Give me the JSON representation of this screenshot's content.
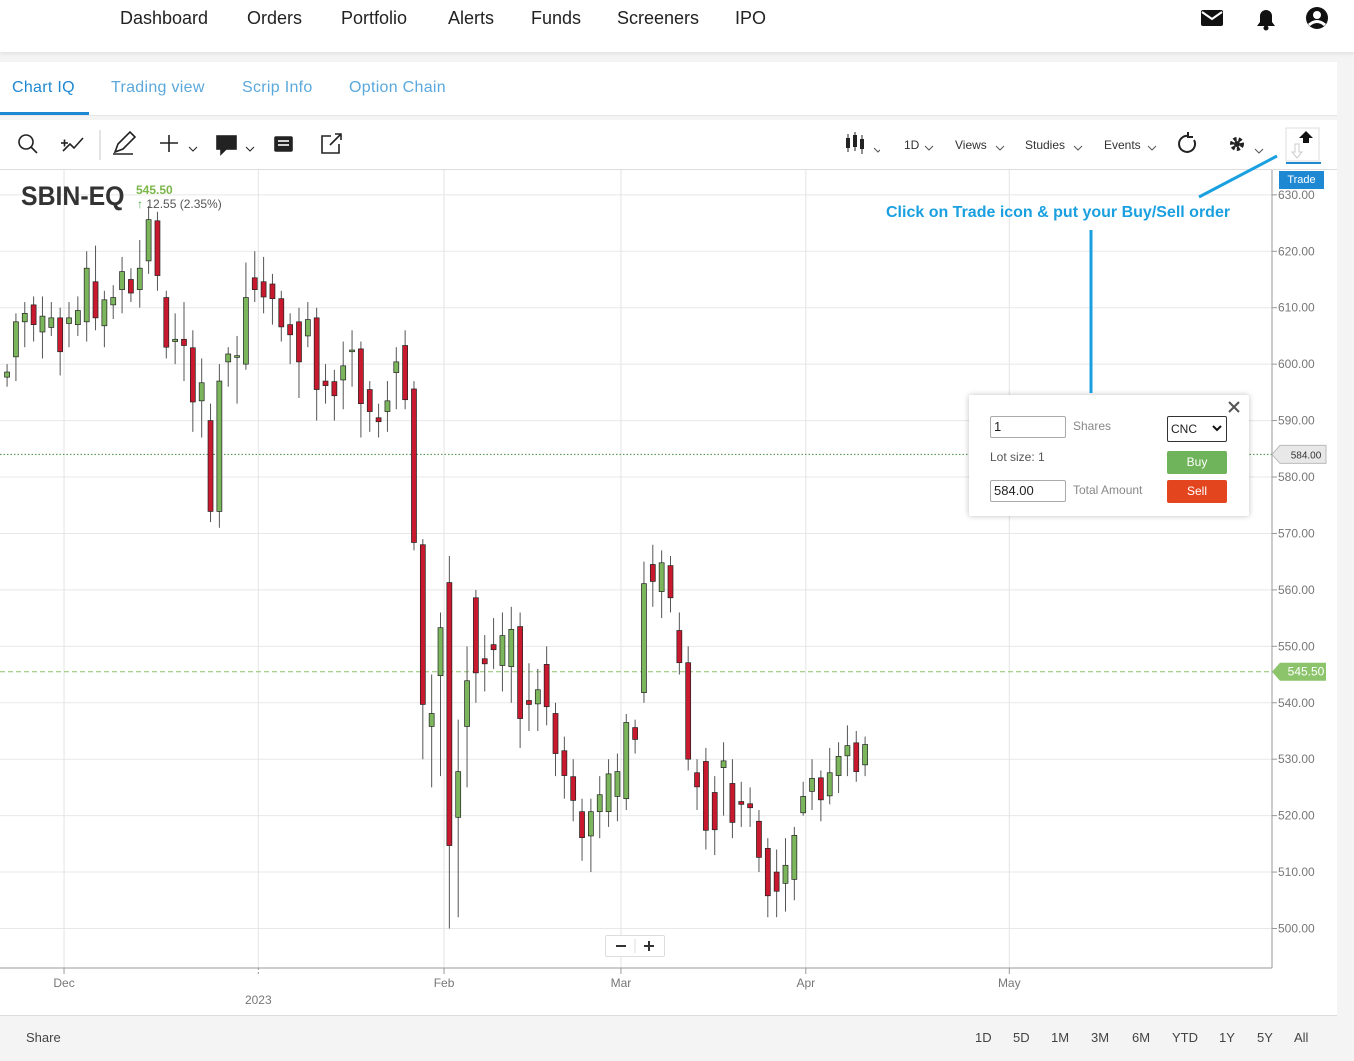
{
  "nav": {
    "items": [
      "Dashboard",
      "Orders",
      "Portfolio",
      "Alerts",
      "Funds",
      "Screeners",
      "IPO"
    ]
  },
  "tabs": [
    "Chart IQ",
    "Trading view",
    "Scrip Info",
    "Option Chain"
  ],
  "toolbar": {
    "items": [
      "1D",
      "Views",
      "Studies",
      "Events"
    ],
    "trade": "Trade"
  },
  "chart_data": {
    "type": "candlestick",
    "symbol": "SBIN-EQ",
    "quote": {
      "price": "545.50",
      "change": "12.55 (2.35%)"
    },
    "annotation": "Click on Trade icon & put your Buy/Sell order",
    "up_color": "#7cb65c",
    "down_color": "#c8192e",
    "grid": true,
    "open": [
      597.7,
      601.3,
      607.5,
      610.5,
      605.7,
      606.5,
      608.2,
      607.2,
      607,
      607.5,
      614.6,
      606.8,
      610.5,
      613.2,
      615,
      613.2,
      618.3,
      625.4,
      611.8,
      604,
      604.4,
      602.9,
      593.5,
      590,
      573.9,
      600.4,
      601.2,
      600,
      615.3,
      614.6,
      614.2,
      611.6,
      607,
      607.5,
      605,
      608.2,
      597,
      596.9,
      597.2,
      602.2,
      602.7,
      595.5,
      590.5,
      591.6,
      598.5,
      603.3,
      595.6,
      568,
      535.8,
      544.8,
      561.3,
      519.7,
      535.8,
      558.6,
      547.8,
      550.3,
      546.6,
      546.4,
      553.5,
      540.4,
      539.8,
      546.8,
      538.1,
      531.5,
      526.9,
      520.7,
      516.4,
      520.7,
      520.7,
      523.4,
      523,
      535.6,
      541.8,
      564.5,
      559.7,
      564.3,
      552.8,
      547.1,
      527.6,
      529.6,
      524.1,
      528.5,
      525.7,
      522.5,
      522.1,
      519,
      514.2,
      510,
      508,
      508.7,
      520.5,
      524.3,
      526.7,
      523.5,
      527.1,
      530.6,
      532.9,
      529
    ],
    "high": [
      600,
      609,
      611,
      612,
      612,
      611,
      610,
      611,
      612,
      620,
      621,
      613,
      614,
      619,
      617,
      622,
      628,
      627,
      613,
      609,
      611,
      606,
      601,
      593,
      600,
      603,
      605,
      618,
      620,
      619,
      616,
      613,
      609,
      610,
      611,
      610,
      600,
      599,
      604,
      606,
      604,
      597,
      593,
      597,
      603,
      606,
      597,
      569,
      545,
      556,
      566,
      537,
      550,
      560,
      552,
      555,
      556,
      557,
      556,
      547,
      546,
      550,
      540,
      534,
      530,
      523,
      523,
      527,
      530,
      531,
      538,
      537,
      565,
      568,
      567,
      566,
      556,
      550,
      530,
      532,
      527,
      533,
      530,
      526,
      525,
      521,
      516,
      514,
      516,
      518,
      526,
      530,
      528,
      532,
      533,
      536,
      535,
      534
    ],
    "low": [
      596,
      597,
      603,
      604,
      601,
      605,
      598,
      603,
      605,
      604,
      606,
      603,
      608,
      609,
      611,
      610,
      616,
      613,
      601,
      600,
      597,
      588,
      587,
      572,
      571,
      596,
      593,
      599,
      611,
      609,
      607,
      604,
      600,
      594,
      603,
      590,
      593,
      590,
      592,
      596,
      587,
      588,
      587,
      588,
      592,
      592,
      567,
      530,
      525,
      527,
      500,
      502,
      525,
      540,
      542,
      546,
      542,
      540,
      532,
      535,
      535,
      536,
      527,
      523,
      519,
      512,
      510,
      516,
      518,
      519,
      521,
      531,
      540,
      557,
      555,
      556,
      545,
      528,
      521,
      514,
      513,
      520,
      516,
      518,
      518,
      510,
      502,
      502,
      503,
      505,
      520,
      521,
      519,
      522,
      524,
      527,
      526,
      527
    ],
    "close": [
      598.6,
      607.5,
      609,
      607,
      608.5,
      608.2,
      602.2,
      608.2,
      609.5,
      617,
      608.2,
      611.4,
      611.8,
      616.4,
      612.6,
      617,
      625.6,
      615.7,
      603,
      604.4,
      603.3,
      593.3,
      596.7,
      573.9,
      597,
      601.8,
      601.5,
      611.8,
      613.2,
      611.9,
      611.6,
      606.6,
      605.2,
      600.4,
      607.9,
      595.5,
      596.2,
      594.4,
      599.7,
      602.5,
      593,
      591.6,
      589.8,
      593.5,
      600.4,
      593.7,
      568.4,
      539.7,
      538.1,
      553.3,
      514.7,
      527.8,
      543.9,
      545.3,
      546.9,
      549.4,
      551.9,
      553,
      537.2,
      539.7,
      542.3,
      539.3,
      531,
      527.1,
      522.7,
      516.1,
      520.7,
      523.7,
      527.4,
      527.8,
      536.5,
      533.5,
      561.1,
      561.5,
      564.8,
      558.6,
      547.1,
      530,
      525.1,
      517.4,
      517.5,
      529.7,
      518.8,
      522,
      521.4,
      512.6,
      505.8,
      506.6,
      511.2,
      516.5,
      523.4,
      526.6,
      522.8,
      527.6,
      530.5,
      532.4,
      527.8,
      532.6
    ],
    "xlim": [
      -0.8,
      143
    ],
    "xticks": [
      {
        "value": 6.44,
        "label": "Dec"
      },
      {
        "value": 28.4,
        "label": "2023"
      },
      {
        "value": 49.4,
        "label": "Feb"
      },
      {
        "value": 69.4,
        "label": "Mar"
      },
      {
        "value": 90.3,
        "label": "Apr"
      },
      {
        "value": 113.3,
        "label": "May"
      }
    ],
    "ylim": [
      493,
      634.4
    ],
    "yticks": [
      {
        "value": 500,
        "label": "500.00"
      },
      {
        "value": 510,
        "label": "510.00"
      },
      {
        "value": 520,
        "label": "520.00"
      },
      {
        "value": 530,
        "label": "530.00"
      },
      {
        "value": 540,
        "label": "540.00"
      },
      {
        "value": 550,
        "label": "550.00"
      },
      {
        "value": 560,
        "label": "560.00"
      },
      {
        "value": 570,
        "label": "570.00"
      },
      {
        "value": 580,
        "label": "580.00"
      },
      {
        "value": 590,
        "label": "590.00"
      },
      {
        "value": 600,
        "label": "600.00"
      },
      {
        "value": 610,
        "label": "610.00"
      },
      {
        "value": 620,
        "label": "620.00"
      },
      {
        "value": 630,
        "label": "630.00"
      }
    ],
    "price_lines": [
      {
        "value": 584,
        "label": "584.00",
        "color": "#3f8f3f",
        "style": "dotted"
      },
      {
        "value": 545.5,
        "label": "545.50",
        "color": "#8cc46c",
        "style": "dashed"
      }
    ]
  },
  "order_form": {
    "quantity": "1",
    "shares_label": "Shares",
    "product": "CNC",
    "lot_size": "Lot size: 1",
    "buy": "Buy",
    "amount": "584.00",
    "amount_label": "Total Amount",
    "sell": "Sell"
  },
  "footer": {
    "share": "Share",
    "ranges": [
      "1D",
      "5D",
      "1M",
      "3M",
      "6M",
      "YTD",
      "1Y",
      "5Y",
      "All"
    ]
  }
}
